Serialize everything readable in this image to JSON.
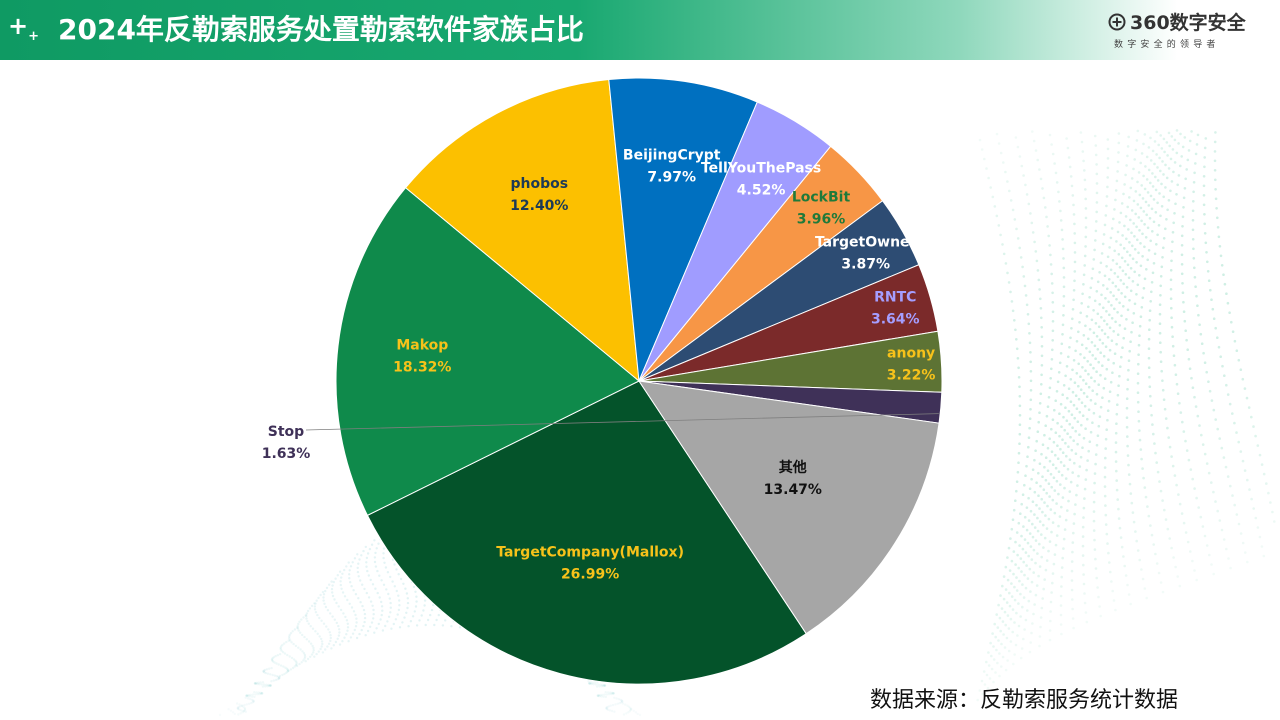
{
  "header": {
    "title": "2024年反勒索服务处置勒索软件家族占比",
    "brand_name": "360数字安全",
    "brand_slogan": "数字安全的领导者"
  },
  "source_note": "数据来源：反勒索服务统计数据",
  "chart_data": {
    "type": "pie",
    "title": "2024年反勒索服务处置勒索软件家族占比",
    "start_angle_deg": 146.5,
    "direction": "clockwise",
    "slices": [
      {
        "label": "TargetCompany(Mallox)",
        "value": 26.99,
        "display": "26.99%",
        "color": "#04532a",
        "label_color": "#f7c21a"
      },
      {
        "label": "Makop",
        "value": 18.32,
        "display": "18.32%",
        "color": "#0f8a4b",
        "label_color": "#f7c21a"
      },
      {
        "label": "phobos",
        "value": 12.4,
        "display": "12.40%",
        "color": "#fcc000",
        "label_color": "#1d3a56"
      },
      {
        "label": "BeijingCrypt",
        "value": 7.97,
        "display": "7.97%",
        "color": "#0070c0",
        "label_color": "#ffffff"
      },
      {
        "label": "TellYouThePass",
        "value": 4.52,
        "display": "4.52%",
        "color": "#a09cff",
        "label_color": "#ffffff"
      },
      {
        "label": "LockBit",
        "value": 3.96,
        "display": "3.96%",
        "color": "#f79646",
        "label_color": "#1f7a3a"
      },
      {
        "label": "TargetOwner",
        "value": 3.87,
        "display": "3.87%",
        "color": "#2d4c73",
        "label_color": "#ffffff"
      },
      {
        "label": "RNTC",
        "value": 3.64,
        "display": "3.64%",
        "color": "#7b2a2a",
        "label_color": "#a59eff"
      },
      {
        "label": "anony",
        "value": 3.22,
        "display": "3.22%",
        "color": "#5d7334",
        "label_color": "#f7c21a"
      },
      {
        "label": "Stop",
        "value": 1.63,
        "display": "1.63%",
        "color": "#3f3158",
        "label_color": "#3f3158"
      },
      {
        "label": "其他",
        "value": 13.47,
        "display": "13.47%",
        "color": "#a6a6a6",
        "label_color": "#111111"
      }
    ]
  }
}
